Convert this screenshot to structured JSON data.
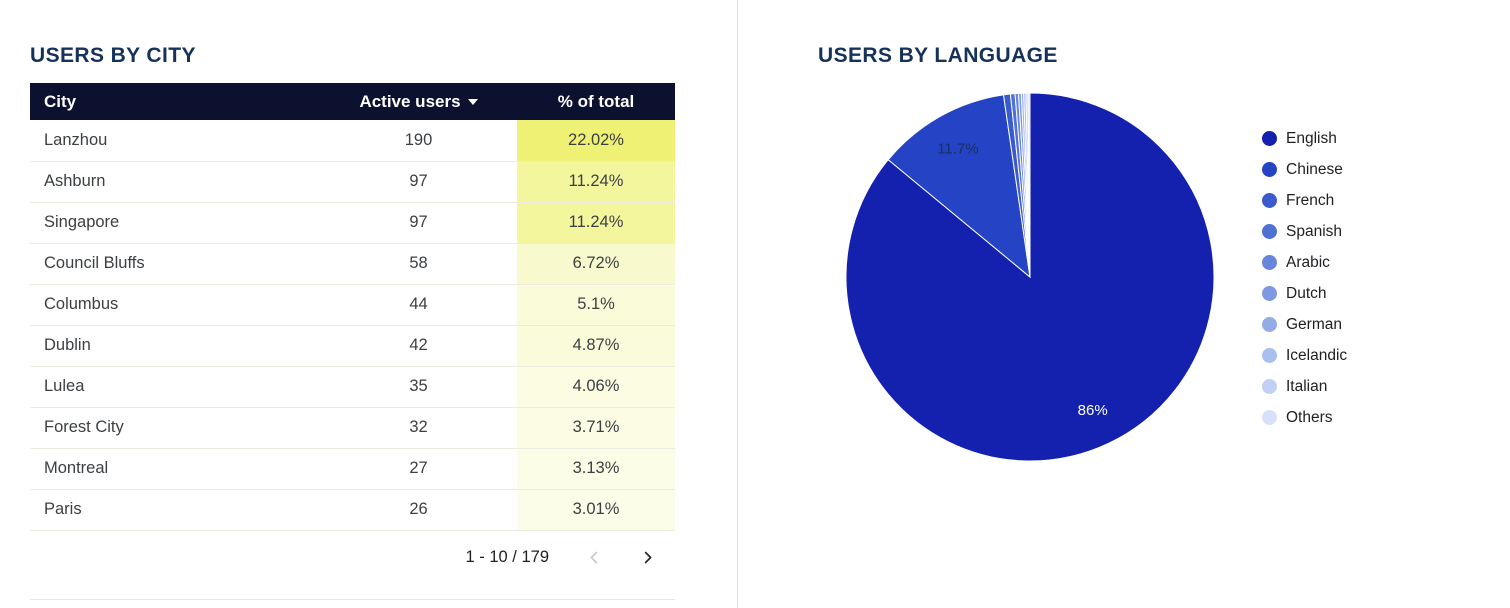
{
  "chart_data": [
    {
      "type": "table",
      "title": "USERS BY CITY",
      "columns": [
        {
          "label": "City",
          "align": "left"
        },
        {
          "label": "Active users",
          "align": "center",
          "sorted": "desc"
        },
        {
          "label": "% of total",
          "align": "center"
        }
      ],
      "rows": [
        {
          "city": "Lanzhou",
          "active_users": 190,
          "pct_of_total": "22.02%",
          "heat_color": "#eef173"
        },
        {
          "city": "Ashburn",
          "active_users": 97,
          "pct_of_total": "11.24%",
          "heat_color": "#f4f69e"
        },
        {
          "city": "Singapore",
          "active_users": 97,
          "pct_of_total": "11.24%",
          "heat_color": "#f4f69e"
        },
        {
          "city": "Council Bluffs",
          "active_users": 58,
          "pct_of_total": "6.72%",
          "heat_color": "#f8facd"
        },
        {
          "city": "Columbus",
          "active_users": 44,
          "pct_of_total": "5.1%",
          "heat_color": "#fafbd9"
        },
        {
          "city": "Dublin",
          "active_users": 42,
          "pct_of_total": "4.87%",
          "heat_color": "#fafbdb"
        },
        {
          "city": "Lulea",
          "active_users": 35,
          "pct_of_total": "4.06%",
          "heat_color": "#fbfce1"
        },
        {
          "city": "Forest City",
          "active_users": 32,
          "pct_of_total": "3.71%",
          "heat_color": "#fbfce3"
        },
        {
          "city": "Montreal",
          "active_users": 27,
          "pct_of_total": "3.13%",
          "heat_color": "#fcfde7"
        },
        {
          "city": "Paris",
          "active_users": 26,
          "pct_of_total": "3.01%",
          "heat_color": "#fcfde8"
        }
      ],
      "pagination": {
        "range_label": "1 - 10 / 179",
        "prev_enabled": false,
        "next_enabled": true
      }
    },
    {
      "type": "pie",
      "title": "USERS BY LANGUAGE",
      "legend_position": "right",
      "slices": [
        {
          "name": "English",
          "value": 86,
          "label": "86%",
          "label_color": "#ffffff",
          "color": "#1421af"
        },
        {
          "name": "Chinese",
          "value": 11.7,
          "label": "11.7%",
          "label_color": "#1c2e63",
          "color": "#2444c5"
        },
        {
          "name": "French",
          "value": 0.6,
          "label": null,
          "color": "#3a5bcd"
        },
        {
          "name": "Spanish",
          "value": 0.4,
          "label": null,
          "color": "#5070d4"
        },
        {
          "name": "Arabic",
          "value": 0.3,
          "label": null,
          "color": "#6685db"
        },
        {
          "name": "Dutch",
          "value": 0.25,
          "label": null,
          "color": "#7c99e2"
        },
        {
          "name": "German",
          "value": 0.2,
          "label": null,
          "color": "#93ace8"
        },
        {
          "name": "Icelandic",
          "value": 0.2,
          "label": null,
          "color": "#aabfee"
        },
        {
          "name": "Italian",
          "value": 0.18,
          "label": null,
          "color": "#c1d0f4"
        },
        {
          "name": "Others",
          "value": 0.17,
          "label": null,
          "color": "#d8e0fa"
        }
      ]
    }
  ]
}
